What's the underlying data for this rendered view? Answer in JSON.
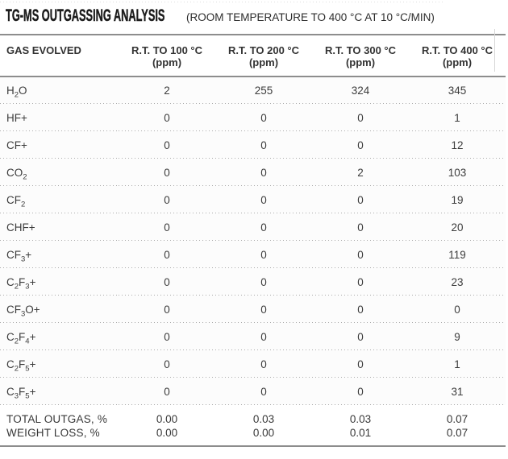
{
  "title": "TG-MS OUTGASSING ANALYSIS",
  "subtitle": "(ROOM TEMPERATURE TO 400 °C AT 10 °C/MIN)",
  "colors": {
    "rule_gray": "#8d8d8d",
    "dot_gray": "#ababab",
    "title_ink": "#1c1c1c",
    "text_ink": "#3c3c3c",
    "row_bg": "#fcfcfc"
  },
  "chart_data": {
    "type": "table",
    "title": "TG-MS OUTGASSING ANALYSIS (ROOM TEMPERATURE TO 400 °C AT 10 °C/MIN)",
    "columns": [
      "GAS EVOLVED",
      "R.T. TO 100 °C (ppm)",
      "R.T. TO 200 °C (ppm)",
      "R.T. TO 300 °C (ppm)",
      "R.T. TO 400 °C (ppm)"
    ],
    "rows": [
      [
        "H2O",
        2,
        255,
        324,
        345
      ],
      [
        "HF+",
        0,
        0,
        0,
        1
      ],
      [
        "CF+",
        0,
        0,
        0,
        12
      ],
      [
        "CO2",
        0,
        0,
        2,
        103
      ],
      [
        "CF2",
        0,
        0,
        0,
        19
      ],
      [
        "CHF+",
        0,
        0,
        0,
        20
      ],
      [
        "CF3+",
        0,
        0,
        0,
        119
      ],
      [
        "C2F3+",
        0,
        0,
        0,
        23
      ],
      [
        "CF3O+",
        0,
        0,
        0,
        0
      ],
      [
        "C2F4+",
        0,
        0,
        0,
        9
      ],
      [
        "C2F5+",
        0,
        0,
        0,
        1
      ],
      [
        "C3F5+",
        0,
        0,
        0,
        31
      ],
      [
        "TOTAL OUTGAS, %",
        0.0,
        0.03,
        0.03,
        0.07
      ],
      [
        "WEIGHT LOSS, %",
        0.0,
        0.0,
        0.01,
        0.07
      ]
    ]
  },
  "table": {
    "gas_column_header": "GAS EVOLVED",
    "columns": [
      {
        "line1": "R.T. TO 100 °C",
        "line2": "(ppm)"
      },
      {
        "line1": "R.T. TO 200 °C",
        "line2": "(ppm)"
      },
      {
        "line1": "R.T. TO 300 °C",
        "line2": "(ppm)"
      },
      {
        "line1": "R.T. TO 400 °C",
        "line2": "(ppm)"
      }
    ],
    "rows": [
      {
        "gas": "H_2_O",
        "values": [
          "2",
          "255",
          "324",
          "345"
        ]
      },
      {
        "gas": "HF+",
        "values": [
          "0",
          "0",
          "0",
          "1"
        ]
      },
      {
        "gas": "CF+",
        "values": [
          "0",
          "0",
          "0",
          "12"
        ]
      },
      {
        "gas": "CO_2_",
        "values": [
          "0",
          "0",
          "2",
          "103"
        ]
      },
      {
        "gas": "CF_2_",
        "values": [
          "0",
          "0",
          "0",
          "19"
        ]
      },
      {
        "gas": "CHF+",
        "values": [
          "0",
          "0",
          "0",
          "20"
        ]
      },
      {
        "gas": "CF_3_+",
        "values": [
          "0",
          "0",
          "0",
          "119"
        ]
      },
      {
        "gas": "C_2_F_3_+",
        "values": [
          "0",
          "0",
          "0",
          "23"
        ]
      },
      {
        "gas": "CF_3_O+",
        "values": [
          "0",
          "0",
          "0",
          "0"
        ]
      },
      {
        "gas": "C_2_F_4_+",
        "values": [
          "0",
          "0",
          "0",
          "9"
        ]
      },
      {
        "gas": "C_2_F_5_+",
        "values": [
          "0",
          "0",
          "0",
          "1"
        ]
      },
      {
        "gas": "C_3_F_5_+",
        "values": [
          "0",
          "0",
          "0",
          "31"
        ]
      }
    ],
    "summary_rows": [
      {
        "label": "TOTAL OUTGAS, %",
        "values": [
          "0.00",
          "0.03",
          "0.03",
          "0.07"
        ]
      },
      {
        "label": "WEIGHT LOSS, %",
        "values": [
          "0.00",
          "0.00",
          "0.01",
          "0.07"
        ]
      }
    ]
  }
}
